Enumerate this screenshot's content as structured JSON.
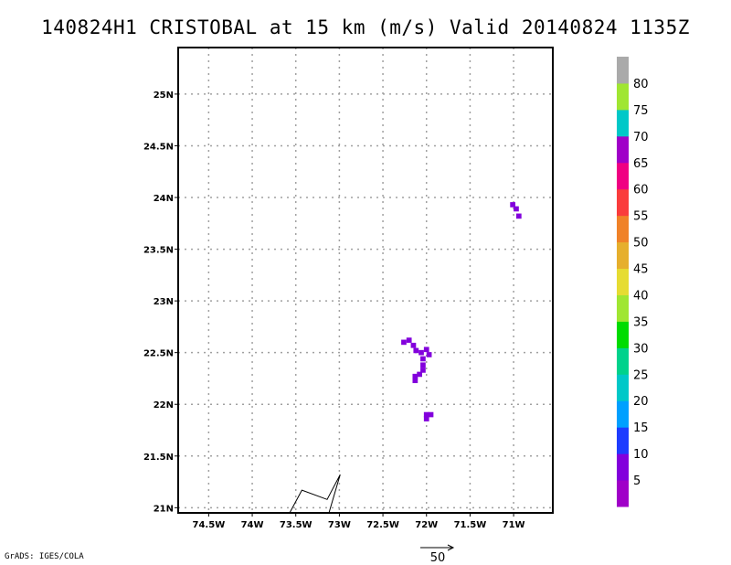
{
  "title": "140824H1 CRISTOBAL at 15 km (m/s) Valid 20140824 1135Z",
  "footer": "GrADS: IGES/COLA",
  "reference_vector": {
    "label": "50",
    "value": 50
  },
  "chart_data": {
    "type": "heatmap",
    "title": "140824H1 CRISTOBAL at 15 km (m/s) Valid 20140824 1135Z",
    "xlabel": "",
    "ylabel": "",
    "xlim": [
      -74.85,
      -70.55
    ],
    "ylim": [
      20.95,
      25.45
    ],
    "grid": true,
    "x_ticks": [
      {
        "value": -74.5,
        "label": "74.5W"
      },
      {
        "value": -74.0,
        "label": "74W"
      },
      {
        "value": -73.5,
        "label": "73.5W"
      },
      {
        "value": -73.0,
        "label": "73W"
      },
      {
        "value": -72.5,
        "label": "72.5W"
      },
      {
        "value": -72.0,
        "label": "72W"
      },
      {
        "value": -71.5,
        "label": "71.5W"
      },
      {
        "value": -71.0,
        "label": "71W"
      }
    ],
    "y_ticks": [
      {
        "value": 21.0,
        "label": "21N"
      },
      {
        "value": 21.5,
        "label": "21.5N"
      },
      {
        "value": 22.0,
        "label": "22N"
      },
      {
        "value": 22.5,
        "label": "22.5N"
      },
      {
        "value": 23.0,
        "label": "23N"
      },
      {
        "value": 23.5,
        "label": "23.5N"
      },
      {
        "value": 24.0,
        "label": "24N"
      },
      {
        "value": 24.5,
        "label": "24.5N"
      },
      {
        "value": 25.0,
        "label": "25N"
      }
    ],
    "colorbar": {
      "labels": [
        "5",
        "10",
        "15",
        "20",
        "25",
        "30",
        "35",
        "40",
        "45",
        "50",
        "55",
        "60",
        "65",
        "70",
        "75",
        "80"
      ],
      "colors": [
        "#a000c8",
        "#8200dc",
        "#1e3cff",
        "#00a0ff",
        "#00c8c8",
        "#00d28c",
        "#00dc00",
        "#a0e632",
        "#e6dc32",
        "#e6af2d",
        "#f08228",
        "#fa3c3c",
        "#f00082",
        "#a000c8",
        "#00c8c8",
        "#a0e632",
        "#aaaaaa"
      ]
    },
    "shaded_cells": [
      {
        "lon": -71.01,
        "lat": 23.93,
        "color": "#8200dc"
      },
      {
        "lon": -70.97,
        "lat": 23.89,
        "color": "#8200dc"
      },
      {
        "lon": -70.94,
        "lat": 23.82,
        "color": "#8200dc"
      },
      {
        "lon": -72.26,
        "lat": 22.6,
        "color": "#8200dc"
      },
      {
        "lon": -72.2,
        "lat": 22.62,
        "color": "#8200dc"
      },
      {
        "lon": -72.15,
        "lat": 22.57,
        "color": "#8200dc"
      },
      {
        "lon": -72.12,
        "lat": 22.52,
        "color": "#8200dc"
      },
      {
        "lon": -72.06,
        "lat": 22.5,
        "color": "#8200dc"
      },
      {
        "lon": -72.0,
        "lat": 22.53,
        "color": "#8200dc"
      },
      {
        "lon": -71.97,
        "lat": 22.48,
        "color": "#8200dc"
      },
      {
        "lon": -72.04,
        "lat": 22.44,
        "color": "#8200dc"
      },
      {
        "lon": -72.04,
        "lat": 22.38,
        "color": "#8200dc"
      },
      {
        "lon": -72.04,
        "lat": 22.33,
        "color": "#8200dc"
      },
      {
        "lon": -72.08,
        "lat": 22.29,
        "color": "#8200dc"
      },
      {
        "lon": -72.13,
        "lat": 22.27,
        "color": "#8200dc"
      },
      {
        "lon": -72.13,
        "lat": 22.23,
        "color": "#8200dc"
      },
      {
        "lon": -72.0,
        "lat": 21.9,
        "color": "#8200dc"
      },
      {
        "lon": -71.95,
        "lat": 21.9,
        "color": "#8200dc"
      },
      {
        "lon": -72.0,
        "lat": 21.86,
        "color": "#8200dc"
      }
    ],
    "vectors": [
      {
        "points": [
          [
            -73.57,
            20.95
          ],
          [
            -73.43,
            21.17
          ],
          [
            -73.14,
            21.08
          ],
          [
            -72.99,
            21.32
          ],
          [
            -73.12,
            20.95
          ]
        ]
      }
    ]
  }
}
